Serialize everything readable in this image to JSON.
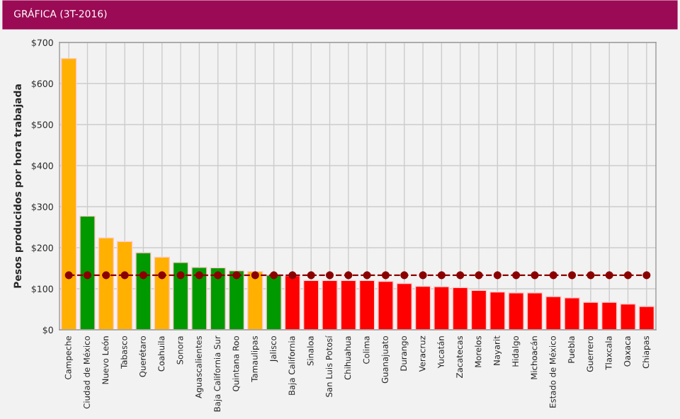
{
  "chart_data": {
    "type": "bar",
    "title": "GRÁFICA (3T-2016)",
    "ylabel": "Pesos producidos por hora trabajada",
    "categories": [
      "Campeche",
      "Ciudad de México",
      "Nuevo León",
      "Tabasco",
      "Querétaro",
      "Coahuila",
      "Sonora",
      "Aguascalientes",
      "Baja California Sur",
      "Quintana Roo",
      "Tamaulipas",
      "Jalisco",
      "Baja California",
      "Sinaloa",
      "San Luis Potosí",
      "Chihuahua",
      "Colima",
      "Guanajuato",
      "Durango",
      "Veracruz",
      "Yucatán",
      "Zacatecas",
      "Morelos",
      "Nayarit",
      "Hidalgo",
      "Michoacán",
      "Estado de México",
      "Puebla",
      "Guerrero",
      "Tlaxcala",
      "Oaxaca",
      "Chiapas"
    ],
    "series": [
      {
        "values": [
          661,
          277,
          224,
          215,
          188,
          177,
          164,
          152,
          151,
          144,
          142,
          133,
          132,
          120,
          120,
          120,
          120,
          118,
          113,
          106,
          105,
          103,
          96,
          92,
          90,
          90,
          81,
          78,
          67,
          67,
          63,
          57
        ],
        "colors": [
          "#ffb000",
          "#009900",
          "#ffb000",
          "#ffb000",
          "#009900",
          "#ffb000",
          "#009900",
          "#009900",
          "#009900",
          "#009900",
          "#ffb000",
          "#009900",
          "#ff0000",
          "#ff0000",
          "#ff0000",
          "#ff0000",
          "#ff0000",
          "#ff0000",
          "#ff0000",
          "#ff0000",
          "#ff0000",
          "#ff0000",
          "#ff0000",
          "#ff0000",
          "#ff0000",
          "#ff0000",
          "#ff0000",
          "#ff0000",
          "#ff0000",
          "#ff0000",
          "#ff0000",
          "#ff0000"
        ]
      },
      {
        "type": "line",
        "color": "#8b0000",
        "marker": "circle",
        "line_style": "dashed",
        "values": [
          133,
          133,
          133,
          133,
          133,
          133,
          133,
          133,
          133,
          133,
          133,
          133,
          133,
          133,
          133,
          133,
          133,
          133,
          133,
          133,
          133,
          133,
          133,
          133,
          133,
          133,
          133,
          133,
          133,
          133,
          133,
          133
        ]
      }
    ],
    "ylim": [
      0,
      700
    ],
    "yticks": [
      {
        "value": 0,
        "label": "$0"
      },
      {
        "value": 100,
        "label": "$100"
      },
      {
        "value": 200,
        "label": "$200"
      },
      {
        "value": 300,
        "label": "$300"
      },
      {
        "value": 400,
        "label": "$400"
      },
      {
        "value": 500,
        "label": "$500"
      },
      {
        "value": 600,
        "label": "$600"
      },
      {
        "value": 700,
        "label": "$700"
      }
    ],
    "grid": true,
    "legend": false
  }
}
